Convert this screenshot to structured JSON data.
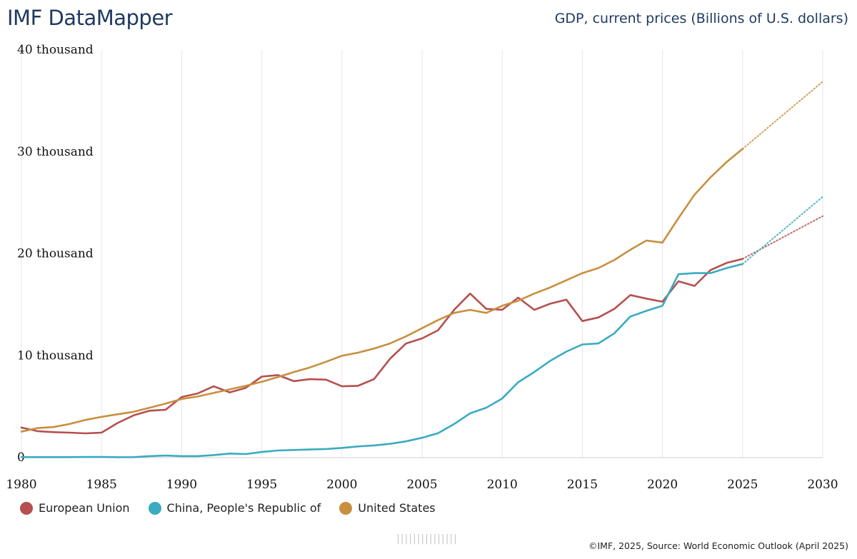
{
  "header": {
    "app_title": "IMF DataMapper",
    "indicator_title": "GDP, current prices (Billions of U.S. dollars)"
  },
  "chart_data": {
    "type": "line",
    "title": "GDP, current prices (Billions of U.S. dollars)",
    "xlabel": "",
    "ylabel": "",
    "xlim": [
      1980,
      2030
    ],
    "ylim": [
      0,
      40000
    ],
    "grid": "vertical",
    "x_ticks": [
      {
        "value": 1980,
        "label": "1980"
      },
      {
        "value": 1985,
        "label": "1985"
      },
      {
        "value": 1990,
        "label": "1990"
      },
      {
        "value": 1995,
        "label": "1995"
      },
      {
        "value": 2000,
        "label": "2000"
      },
      {
        "value": 2005,
        "label": "2005"
      },
      {
        "value": 2010,
        "label": "2010"
      },
      {
        "value": 2015,
        "label": "2015"
      },
      {
        "value": 2020,
        "label": "2020"
      },
      {
        "value": 2025,
        "label": "2025"
      },
      {
        "value": 2030,
        "label": "2030"
      }
    ],
    "y_ticks": [
      {
        "value": 0,
        "label": "0"
      },
      {
        "value": 10000,
        "label": "10 thousand"
      },
      {
        "value": 20000,
        "label": "20 thousand"
      },
      {
        "value": 30000,
        "label": "30 thousand"
      },
      {
        "value": 40000,
        "label": "40 thousand"
      }
    ],
    "projection_start": 2025,
    "series": [
      {
        "name": "European Union",
        "color": "#b5504f",
        "x": [
          1980,
          1981,
          1982,
          1983,
          1984,
          1985,
          1986,
          1987,
          1988,
          1989,
          1990,
          1991,
          1992,
          1993,
          1994,
          1995,
          1996,
          1997,
          1998,
          1999,
          2000,
          2001,
          2002,
          2003,
          2004,
          2005,
          2006,
          2007,
          2008,
          2009,
          2010,
          2011,
          2012,
          2013,
          2014,
          2015,
          2016,
          2017,
          2018,
          2019,
          2020,
          2021,
          2022,
          2023,
          2024,
          2025
        ],
        "values": [
          2950,
          2600,
          2500,
          2450,
          2380,
          2450,
          3400,
          4150,
          4600,
          4700,
          5950,
          6300,
          7000,
          6400,
          6850,
          7950,
          8100,
          7500,
          7700,
          7650,
          7000,
          7050,
          7700,
          9700,
          11200,
          11700,
          12500,
          14500,
          16100,
          14600,
          14500,
          15700,
          14500,
          15100,
          15500,
          13400,
          13750,
          14600,
          15950,
          15600,
          15300,
          17300,
          16850,
          18400,
          19100,
          19500
        ],
        "projection": {
          "x": [
            2025,
            2030
          ],
          "values": [
            19500,
            23700
          ]
        }
      },
      {
        "name": "China, People's Republic of",
        "color": "#3aabc0",
        "x": [
          1980,
          1981,
          1982,
          1983,
          1984,
          1985,
          1986,
          1987,
          1988,
          1989,
          1990,
          1991,
          1992,
          1993,
          1994,
          1995,
          1996,
          1997,
          1998,
          1999,
          2000,
          2001,
          2002,
          2003,
          2004,
          2005,
          2006,
          2007,
          2008,
          2009,
          2010,
          2011,
          2012,
          2013,
          2014,
          2015,
          2016,
          2017,
          2018,
          2019,
          2020,
          2021,
          2022,
          2023,
          2024,
          2025
        ],
        "values": [
          50,
          50,
          50,
          50,
          60,
          60,
          40,
          50,
          150,
          200,
          150,
          150,
          250,
          400,
          350,
          550,
          700,
          750,
          800,
          850,
          950,
          1100,
          1200,
          1350,
          1600,
          1950,
          2400,
          3300,
          4350,
          4900,
          5800,
          7400,
          8400,
          9500,
          10400,
          11100,
          11200,
          12200,
          13850,
          14400,
          14900,
          18000,
          18100,
          18100,
          18600,
          19000
        ],
        "projection": {
          "x": [
            2025,
            2030
          ],
          "values": [
            19000,
            25600
          ]
        }
      },
      {
        "name": "United States",
        "color": "#c88f3e",
        "x": [
          1980,
          1981,
          1982,
          1983,
          1984,
          1985,
          1986,
          1987,
          1988,
          1989,
          1990,
          1991,
          1992,
          1993,
          1994,
          1995,
          1996,
          1997,
          1998,
          1999,
          2000,
          2001,
          2002,
          2003,
          2004,
          2005,
          2006,
          2007,
          2008,
          2009,
          2010,
          2011,
          2012,
          2013,
          2014,
          2015,
          2016,
          2017,
          2018,
          2019,
          2020,
          2021,
          2022,
          2023,
          2024,
          2025
        ],
        "values": [
          2550,
          2900,
          3000,
          3300,
          3700,
          4000,
          4250,
          4500,
          4900,
          5300,
          5750,
          6000,
          6350,
          6700,
          7050,
          7450,
          7900,
          8400,
          8850,
          9400,
          10000,
          10300,
          10700,
          11200,
          11900,
          12700,
          13500,
          14200,
          14500,
          14200,
          14900,
          15400,
          16100,
          16700,
          17400,
          18100,
          18600,
          19400,
          20400,
          21300,
          21100,
          23500,
          25800,
          27500,
          29000,
          30300
        ],
        "projection": {
          "x": [
            2025,
            2030
          ],
          "values": [
            30300,
            36900
          ]
        }
      }
    ]
  },
  "legend": [
    {
      "label": "European Union",
      "color": "#b5504f"
    },
    {
      "label": "China, People's Republic of",
      "color": "#3aabc0"
    },
    {
      "label": "United States",
      "color": "#c88f3e"
    }
  ],
  "footer": {
    "credit": "©IMF, 2025, Source: World Economic Outlook (April 2025)",
    "watermark": "|||||||||||||||"
  }
}
